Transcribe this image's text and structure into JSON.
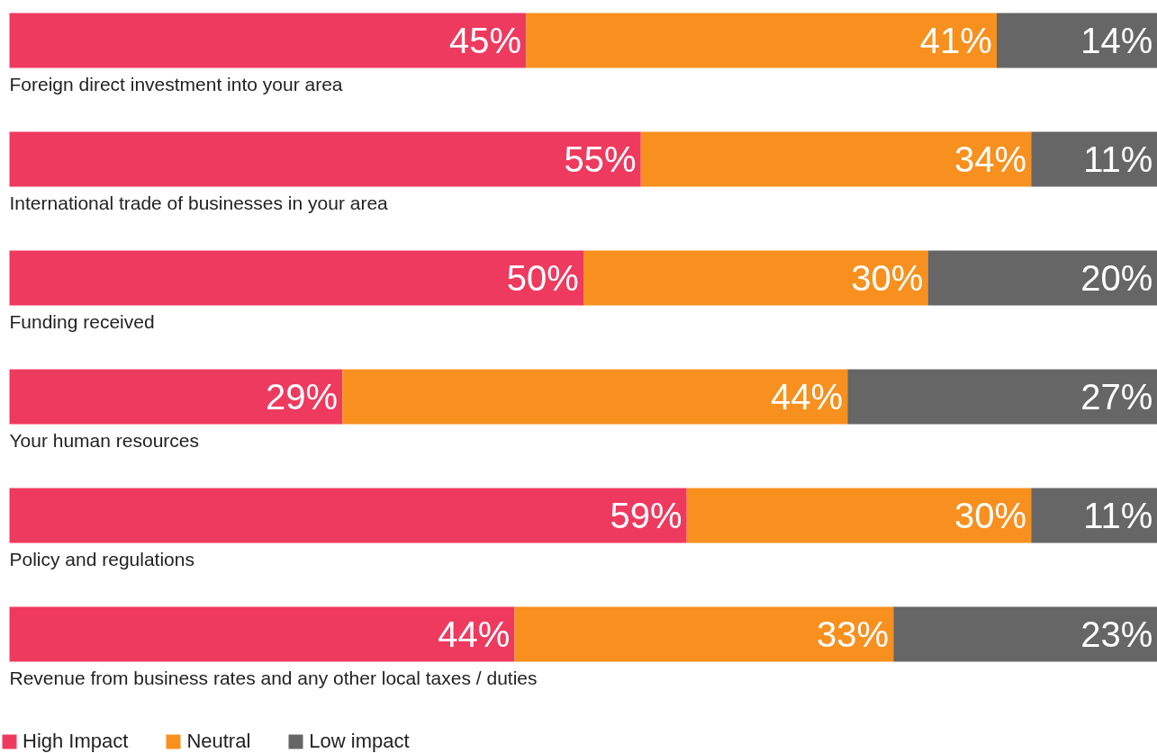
{
  "chart_data": {
    "type": "bar",
    "orientation": "horizontal",
    "stacked": true,
    "legend": "bottom left",
    "grid": false,
    "categories": [
      "Foreign direct investment into your area",
      "International trade of businesses in your area",
      "Funding received",
      "Your human resources",
      "Policy and regulations",
      "Revenue from business rates and any other local taxes / duties"
    ],
    "series": [
      {
        "name": "High Impact",
        "color": "#ef3a5f",
        "values": [
          45,
          55,
          50,
          29,
          59,
          44
        ],
        "value_labels": [
          "45%",
          "55%",
          "50%",
          "29%",
          "59%",
          "44%"
        ]
      },
      {
        "name": "Neutral",
        "color": "#f7901e",
        "values": [
          41,
          34,
          30,
          44,
          30,
          33
        ],
        "value_labels": [
          "41%",
          "34%",
          "30%",
          "44%",
          "30%",
          "33%"
        ]
      },
      {
        "name": "Low impact",
        "color": "#666666",
        "values": [
          14,
          11,
          20,
          27,
          11,
          23
        ],
        "value_labels": [
          "14%",
          "11%",
          "20%",
          "27%",
          "11%",
          "23%"
        ]
      }
    ]
  }
}
